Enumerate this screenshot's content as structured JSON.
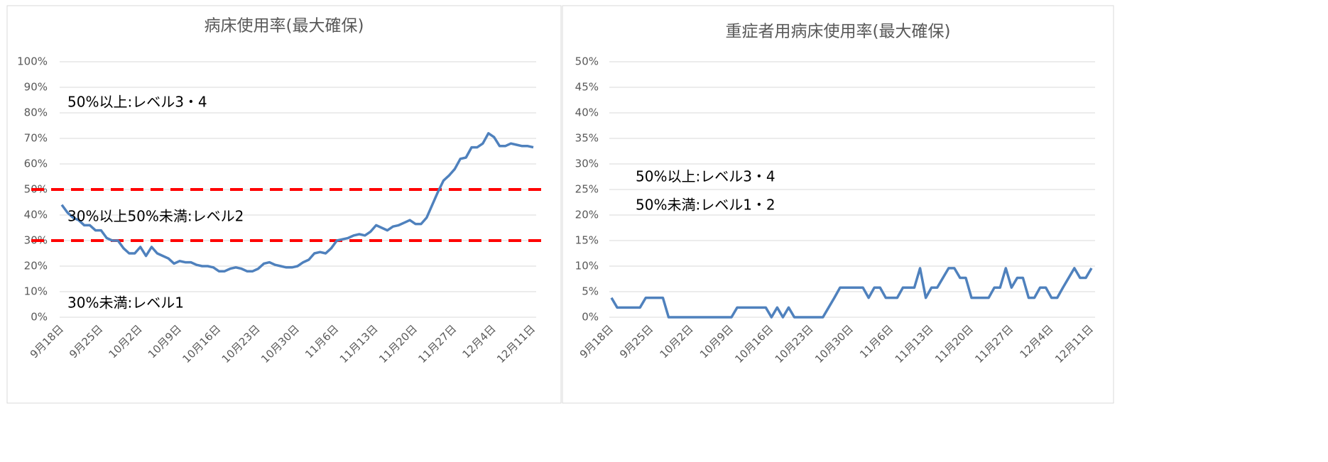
{
  "chart_data": [
    {
      "type": "line",
      "title": "病床使用率(最大確保)",
      "categories": [
        "9月18日",
        null,
        null,
        null,
        null,
        null,
        null,
        "9月25日",
        null,
        null,
        null,
        null,
        null,
        null,
        "10月2日",
        null,
        null,
        null,
        null,
        null,
        null,
        "10月9日",
        null,
        null,
        null,
        null,
        null,
        null,
        "10月16日",
        null,
        null,
        null,
        null,
        null,
        null,
        "10月23日",
        null,
        null,
        null,
        null,
        null,
        null,
        "10月30日",
        null,
        null,
        null,
        null,
        null,
        null,
        "11月6日",
        null,
        null,
        null,
        null,
        null,
        null,
        "11月13日",
        null,
        null,
        null,
        null,
        null,
        null,
        "11月20日",
        null,
        null,
        null,
        null,
        null,
        null,
        "11月27日",
        null,
        null,
        null,
        null,
        null,
        null,
        "12月4日",
        null,
        null,
        null,
        null,
        null,
        null,
        "12月11日"
      ],
      "series": [
        {
          "name": "病床使用率",
          "color": "#4f81bd",
          "values": [
            44,
            41,
            39,
            38,
            36,
            36,
            34,
            34,
            31,
            30,
            30,
            27,
            25,
            25,
            27.5,
            24,
            27.5,
            25,
            24,
            23,
            21,
            22,
            21.5,
            21.5,
            20.5,
            20,
            20,
            19.5,
            18,
            18,
            19,
            19.5,
            19,
            18,
            18,
            19,
            21,
            21.5,
            20.5,
            20,
            19.5,
            19.5,
            20,
            21.5,
            22.5,
            25,
            25.5,
            25,
            27,
            30,
            30.5,
            31,
            32,
            32.5,
            32,
            33.5,
            36,
            35,
            34,
            35.5,
            36,
            37,
            38,
            36.5,
            36.5,
            39,
            44,
            49,
            53.5,
            55.5,
            58,
            62,
            62.5,
            66.5,
            66.5,
            68,
            72,
            70.5,
            67,
            67,
            68,
            67.5,
            67,
            67,
            66.5
          ]
        }
      ],
      "ylim": [
        0,
        100
      ],
      "yticks": [
        {
          "value": 0,
          "label": "0%"
        },
        {
          "value": 10,
          "label": "10%"
        },
        {
          "value": 20,
          "label": "20%"
        },
        {
          "value": 30,
          "label": "30%"
        },
        {
          "value": 40,
          "label": "40%"
        },
        {
          "value": 50,
          "label": "50%"
        },
        {
          "value": 60,
          "label": "60%"
        },
        {
          "value": 70,
          "label": "70%"
        },
        {
          "value": 80,
          "label": "80%"
        },
        {
          "value": 90,
          "label": "90%"
        },
        {
          "value": 100,
          "label": "100%"
        }
      ],
      "grid": true,
      "thresholds": [
        50,
        30
      ],
      "threshold_color": "#ff0000",
      "annotations": [
        "50%以上:レベル3・4",
        "30%以上50%未満:レベル2",
        "30%未満:レベル1"
      ]
    },
    {
      "type": "line",
      "title": "重症者用病床使用率(最大確保)",
      "categories": [
        "9月18日",
        null,
        null,
        null,
        null,
        null,
        null,
        "9月25日",
        null,
        null,
        null,
        null,
        null,
        null,
        "10月2日",
        null,
        null,
        null,
        null,
        null,
        null,
        "10月9日",
        null,
        null,
        null,
        null,
        null,
        null,
        "10月16日",
        null,
        null,
        null,
        null,
        null,
        null,
        "10月23日",
        null,
        null,
        null,
        null,
        null,
        null,
        "10月30日",
        null,
        null,
        null,
        null,
        null,
        null,
        "11月6日",
        null,
        null,
        null,
        null,
        null,
        null,
        "11月13日",
        null,
        null,
        null,
        null,
        null,
        null,
        "11月20日",
        null,
        null,
        null,
        null,
        null,
        null,
        "11月27日",
        null,
        null,
        null,
        null,
        null,
        null,
        "12月4日",
        null,
        null,
        null,
        null,
        null,
        null,
        "12月11日"
      ],
      "series": [
        {
          "name": "重症者用病床使用率",
          "color": "#4f81bd",
          "values": [
            3.8,
            1.9,
            1.9,
            1.9,
            1.9,
            1.9,
            3.8,
            3.8,
            3.8,
            3.8,
            0,
            0,
            0,
            0,
            0,
            0,
            0,
            0,
            0,
            0,
            0,
            0,
            1.9,
            1.9,
            1.9,
            1.9,
            1.9,
            1.9,
            0,
            1.9,
            0,
            1.9,
            0,
            0,
            0,
            0,
            0,
            0,
            1.9,
            3.8,
            5.8,
            5.8,
            5.8,
            5.8,
            5.8,
            3.8,
            5.8,
            5.8,
            3.8,
            3.8,
            3.8,
            5.8,
            5.8,
            5.8,
            9.6,
            3.8,
            5.8,
            5.8,
            7.7,
            9.6,
            9.6,
            7.7,
            7.7,
            3.8,
            3.8,
            3.8,
            3.8,
            5.8,
            5.8,
            9.6,
            5.8,
            7.7,
            7.7,
            3.8,
            3.8,
            5.8,
            5.8,
            3.8,
            3.8,
            5.8,
            7.7,
            9.6,
            7.7,
            7.7,
            9.6
          ]
        }
      ],
      "ylim": [
        0,
        50
      ],
      "yticks": [
        {
          "value": 0,
          "label": "0%"
        },
        {
          "value": 5,
          "label": "5%"
        },
        {
          "value": 10,
          "label": "10%"
        },
        {
          "value": 15,
          "label": "15%"
        },
        {
          "value": 20,
          "label": "20%"
        },
        {
          "value": 25,
          "label": "25%"
        },
        {
          "value": 30,
          "label": "30%"
        },
        {
          "value": 35,
          "label": "35%"
        },
        {
          "value": 40,
          "label": "40%"
        },
        {
          "value": 45,
          "label": "45%"
        },
        {
          "value": 50,
          "label": "50%"
        }
      ],
      "grid": true,
      "annotations": [
        "50%以上:レベル3・4",
        "50%未満:レベル1・2"
      ]
    }
  ]
}
